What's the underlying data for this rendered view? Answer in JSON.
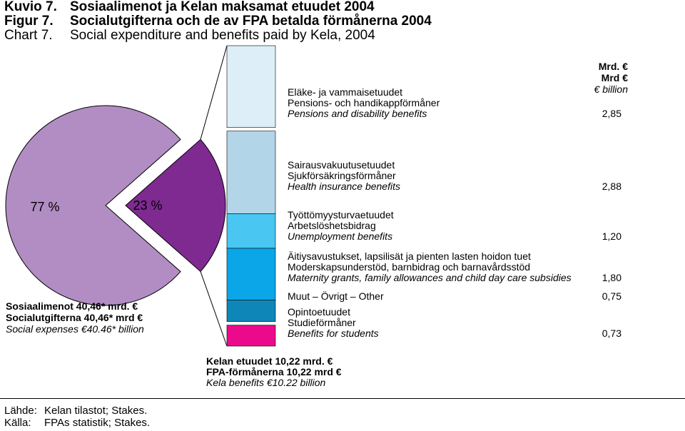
{
  "titles": [
    {
      "num": "Kuvio 7.",
      "text": "Sosiaalimenot ja Kelan maksamat etuudet 2004",
      "bold": true
    },
    {
      "num": "Figur 7.",
      "text": "Socialutgifterna och de av FPA betalda förmånerna 2004",
      "bold": true
    },
    {
      "num": "Chart 7.",
      "text": "Social expenditure and benefits paid by Kela, 2004",
      "bold": false
    }
  ],
  "chart_data": {
    "type": "pie",
    "pie": {
      "slices": [
        {
          "label": "77 %",
          "value": 77,
          "color": "#b28dc4"
        },
        {
          "label": "23 %",
          "value": 23,
          "color": "#7f2a91"
        }
      ],
      "caption": [
        "Sosiaalimenot 40,46* mrd. €",
        "Socialutgifterna 40,46* mrd €",
        "Social expenses €40.46* billion"
      ]
    },
    "bar": {
      "unit_header": [
        "Mrd. €",
        "Mrd €",
        "€ billion"
      ],
      "segments": [
        {
          "labels": [
            "Eläke- ja vammaisetuudet",
            "Pensions- och handikappförmåner",
            "Pensions and disability benefits"
          ],
          "value": 2.85,
          "value_text": "2,85",
          "color": "#ddeef9"
        },
        {
          "labels": [
            "Sairausvakuutusetuudet",
            "Sjukförsäkringsförmåner",
            "Health insurance benefits"
          ],
          "value": 2.88,
          "value_text": "2,88",
          "color": "#b3d5e8"
        },
        {
          "labels": [
            "Työttömyysturvaetuudet",
            "Arbetslöshetsbidrag",
            "Unemployment benefits"
          ],
          "value": 1.2,
          "value_text": "1,20",
          "color": "#49c6f2"
        },
        {
          "labels": [
            "Äitiysavustukset, lapsilisät ja pienten lasten hoidon tuet",
            "Moderskapsunderstöd, barnbidrag och barnavårdsstöd",
            "Maternity grants, family allowances and child day care subsidies"
          ],
          "value": 1.8,
          "value_text": "1,80",
          "color": "#0aa6e8"
        },
        {
          "labels": [
            "Muut – Övrigt – Other"
          ],
          "value": 0.75,
          "value_text": "0,75",
          "color": "#0f86b8"
        },
        {
          "labels": [
            "Opintoetuudet",
            "Studieförmåner",
            "Benefits for students"
          ],
          "value": 0.73,
          "value_text": "0,73",
          "color": "#ec0a8c"
        }
      ],
      "caption": [
        "Kelan etuudet 10,22 mrd. €",
        "FPA-förmånerna 10,22 mrd €",
        "Kela benefits €10.22 billion"
      ]
    }
  },
  "source": [
    {
      "label": "Lähde:",
      "text": "Kelan tilastot; Stakes."
    },
    {
      "label": "Källa:",
      "text": "FPAs statistik; Stakes."
    }
  ]
}
